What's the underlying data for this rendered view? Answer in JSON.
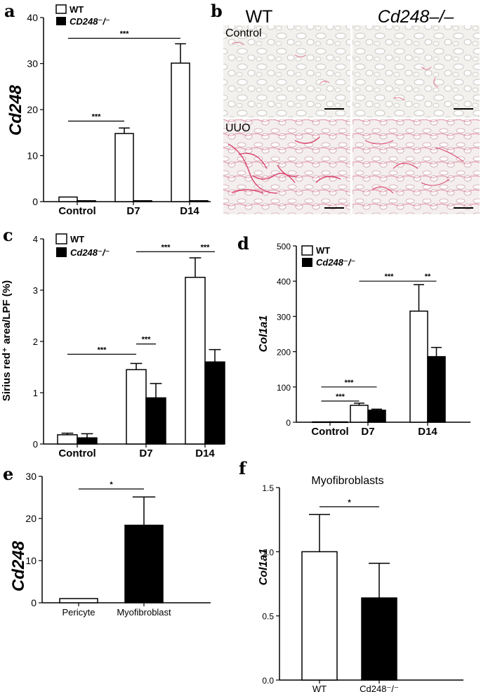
{
  "panels": {
    "a": "a",
    "b": "b",
    "c": "c",
    "d": "d",
    "e": "e",
    "f": "f"
  },
  "micrograph": {
    "col_headers": [
      "WT",
      "Cd248–/–"
    ],
    "row_labels": [
      "Control",
      "UUO"
    ]
  },
  "chart_data": [
    {
      "id": "a",
      "type": "bar",
      "ylabel": "Cd248",
      "ylim": [
        0,
        40
      ],
      "yticks": [
        0,
        10,
        20,
        30,
        40
      ],
      "categories": [
        "Control",
        "D7",
        "D14"
      ],
      "series": [
        {
          "name": "WT",
          "values": [
            1.0,
            14.8,
            30.1
          ],
          "errors": [
            0,
            1.2,
            4.2
          ],
          "color": "#ffffff"
        },
        {
          "name": "CD248⁻/⁻",
          "values": [
            0.2,
            0.2,
            0.2
          ],
          "errors": [
            0,
            0,
            0
          ],
          "color": "#000000"
        }
      ],
      "significance": [
        {
          "from": [
            0,
            0
          ],
          "to": [
            1,
            0
          ],
          "label": "***",
          "y": 17.5
        },
        {
          "from": [
            0,
            0
          ],
          "to": [
            2,
            0
          ],
          "label": "***",
          "y": 35.5
        }
      ]
    },
    {
      "id": "c",
      "type": "bar",
      "ylabel": "Sirius red⁺ area/LPF (%)",
      "ylim": [
        0,
        4
      ],
      "yticks": [
        0,
        1,
        2,
        3,
        4
      ],
      "categories": [
        "Control",
        "D7",
        "D14"
      ],
      "series": [
        {
          "name": "WT",
          "values": [
            0.18,
            1.45,
            3.25
          ],
          "errors": [
            0.03,
            0.12,
            0.38
          ],
          "color": "#ffffff"
        },
        {
          "name": "Cd248⁻/⁻",
          "values": [
            0.12,
            0.9,
            1.6
          ],
          "errors": [
            0.08,
            0.28,
            0.24
          ],
          "color": "#000000"
        }
      ],
      "significance": [
        {
          "from": [
            0,
            0
          ],
          "to": [
            1,
            0
          ],
          "label": "***",
          "y": 1.75
        },
        {
          "from": [
            1,
            0
          ],
          "to": [
            1,
            1
          ],
          "label": "***",
          "y": 1.95
        },
        {
          "from": [
            1,
            0
          ],
          "to": [
            2,
            0
          ],
          "label": "***",
          "y": 3.75
        },
        {
          "from": [
            2,
            0
          ],
          "to": [
            2,
            1
          ],
          "label": "***",
          "y": 3.75
        }
      ]
    },
    {
      "id": "d",
      "type": "bar",
      "ylabel": "Col1a1",
      "ylim": [
        0,
        500
      ],
      "yticks": [
        0,
        100,
        200,
        300,
        400,
        500
      ],
      "categories": [
        "Control",
        "D7",
        "D14"
      ],
      "series": [
        {
          "name": "WT",
          "values": [
            1,
            48,
            315
          ],
          "errors": [
            0,
            6,
            75
          ],
          "color": "#ffffff"
        },
        {
          "name": "Cd248⁻/⁻",
          "values": [
            1,
            34,
            186
          ],
          "errors": [
            0,
            3,
            26
          ],
          "color": "#000000"
        }
      ],
      "significance": [
        {
          "from": [
            0,
            0
          ],
          "to": [
            1,
            0
          ],
          "label": "***",
          "y": 60
        },
        {
          "from": [
            0,
            0
          ],
          "to": [
            1,
            1
          ],
          "label": "***",
          "y": 100
        },
        {
          "from": [
            1,
            0
          ],
          "to": [
            2,
            0
          ],
          "label": "***",
          "y": 400
        },
        {
          "from": [
            2,
            0
          ],
          "to": [
            2,
            1
          ],
          "label": "**",
          "y": 400
        }
      ]
    },
    {
      "id": "e",
      "type": "bar",
      "ylabel": "Cd248",
      "ylim": [
        0,
        30
      ],
      "yticks": [
        0,
        10,
        20,
        30
      ],
      "categories": [
        "Pericyte",
        "Myofibroblast"
      ],
      "series": [
        {
          "name": "",
          "values": [
            1.0,
            18.4
          ],
          "errors": [
            0,
            6.7
          ],
          "colors": [
            "#ffffff",
            "#000000"
          ]
        }
      ],
      "significance": [
        {
          "from": [
            0,
            0
          ],
          "to": [
            1,
            0
          ],
          "label": "*",
          "y": 27
        }
      ]
    },
    {
      "id": "f",
      "type": "bar",
      "title": "Myofibroblasts",
      "ylabel": "Col1a1",
      "ylim": [
        0,
        1.5
      ],
      "yticks": [
        "0.0",
        "0.5",
        "1.0",
        "1.5"
      ],
      "categories": [
        "WT",
        "Cd248⁻/⁻"
      ],
      "series": [
        {
          "name": "",
          "values": [
            1.0,
            0.64
          ],
          "errors": [
            0.29,
            0.27
          ],
          "colors": [
            "#ffffff",
            "#000000"
          ]
        }
      ],
      "significance": [
        {
          "from": [
            0,
            0
          ],
          "to": [
            1,
            0
          ],
          "label": "*",
          "y": 1.35
        }
      ]
    }
  ]
}
